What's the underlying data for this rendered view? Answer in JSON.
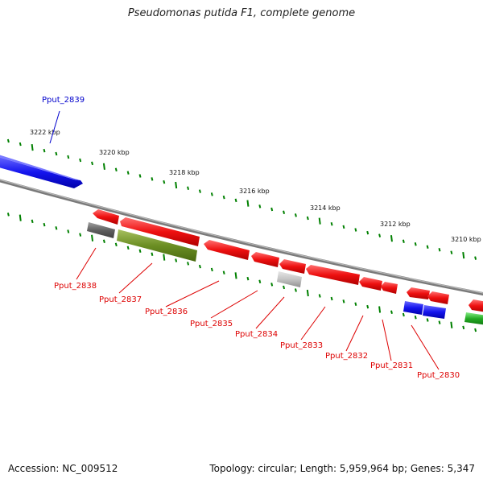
{
  "title": "Pseudomonas putida F1, complete genome",
  "footer": {
    "accession": "Accession: NC_009512",
    "summary": "Topology: circular; Length: 5,959,964 bp; Genes: 5,347"
  },
  "colors": {
    "backbone": "#808080",
    "forward_gene": "#0000ee",
    "reverse_gene": "#ee0000",
    "tick": "#008000",
    "rna": "#c8c8c8",
    "pseudo": "#6b8e23",
    "dark_gray": "#606060",
    "green": "#22aa22"
  },
  "scale_labels": [
    "3222 kbp",
    "3220 kbp",
    "3218 kbp",
    "3216 kbp",
    "3214 kbp",
    "3212 kbp",
    "3210 kbp"
  ],
  "gene_labels": [
    {
      "name": "Pput_2839",
      "strand": "forward"
    },
    {
      "name": "Pput_2838",
      "strand": "reverse"
    },
    {
      "name": "Pput_2837",
      "strand": "reverse"
    },
    {
      "name": "Pput_2836",
      "strand": "reverse"
    },
    {
      "name": "Pput_2835",
      "strand": "reverse"
    },
    {
      "name": "Pput_2834",
      "strand": "reverse"
    },
    {
      "name": "Pput_2833",
      "strand": "reverse"
    },
    {
      "name": "Pput_2832",
      "strand": "reverse"
    },
    {
      "name": "Pput_2831",
      "strand": "reverse"
    },
    {
      "name": "Pput_2830",
      "strand": "reverse"
    }
  ]
}
